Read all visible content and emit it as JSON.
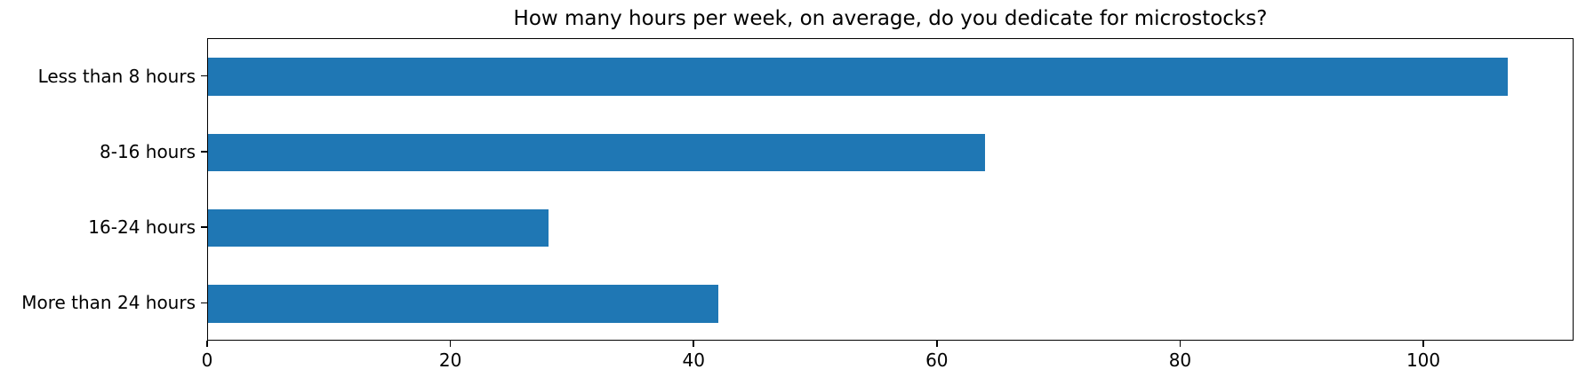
{
  "chart_data": {
    "type": "bar",
    "orientation": "horizontal",
    "title": "How many hours per week, on average, do you dedicate for microstocks?",
    "categories": [
      "Less than 8 hours",
      "8-16 hours",
      "16-24 hours",
      "More than 24 hours"
    ],
    "values": [
      107,
      64,
      28,
      42
    ],
    "xlabel": "",
    "ylabel": "",
    "xlim": [
      0,
      112.35
    ],
    "xticks": [
      0,
      20,
      40,
      60,
      80,
      100
    ],
    "bar_color": "#1f77b4",
    "grid": false,
    "legend": false,
    "category_order": "top-to-bottom"
  }
}
